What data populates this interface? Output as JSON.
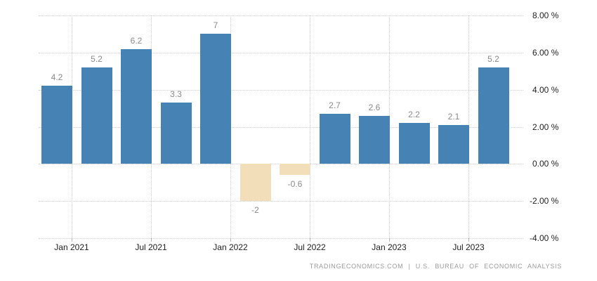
{
  "chart_data": {
    "type": "bar",
    "title": "",
    "xlabel": "",
    "ylabel": "",
    "values": [
      4.2,
      5.2,
      6.2,
      3.3,
      7,
      -2,
      -0.6,
      2.7,
      2.6,
      2.2,
      2.1,
      5.2
    ],
    "bar_labels": [
      "4.2",
      "5.2",
      "6.2",
      "3.3",
      "7",
      "-2",
      "-0.6",
      "2.7",
      "2.6",
      "2.2",
      "2.1",
      "5.2"
    ],
    "x_tick_labels": [
      "Jan 2021",
      "Jul 2021",
      "Jan 2022",
      "Jul 2022",
      "Jan 2023",
      "Jul 2023"
    ],
    "y_tick_labels": [
      "8.00 %",
      "6.00 %",
      "4.00 %",
      "2.00 %",
      "0.00 %",
      "-2.00 %",
      "-4.00 %"
    ],
    "y_ticks": [
      8,
      6,
      4,
      2,
      0,
      -2,
      -4
    ],
    "ylim": [
      -4,
      8
    ],
    "grid": "dotted",
    "legend": "none",
    "colors": {
      "positive_bar": "#4782b4",
      "negative_bar": "#f3deba",
      "grid": "#cfcfcf",
      "value_label": "#8a8a8a",
      "axis_label": "#1f1f1f",
      "attribution": "#9a9a9a",
      "background": "#ffffff"
    }
  },
  "footer": {
    "attribution": "TRADINGECONOMICS.COM | U.S. BUREAU OF ECONOMIC ANALYSIS"
  }
}
